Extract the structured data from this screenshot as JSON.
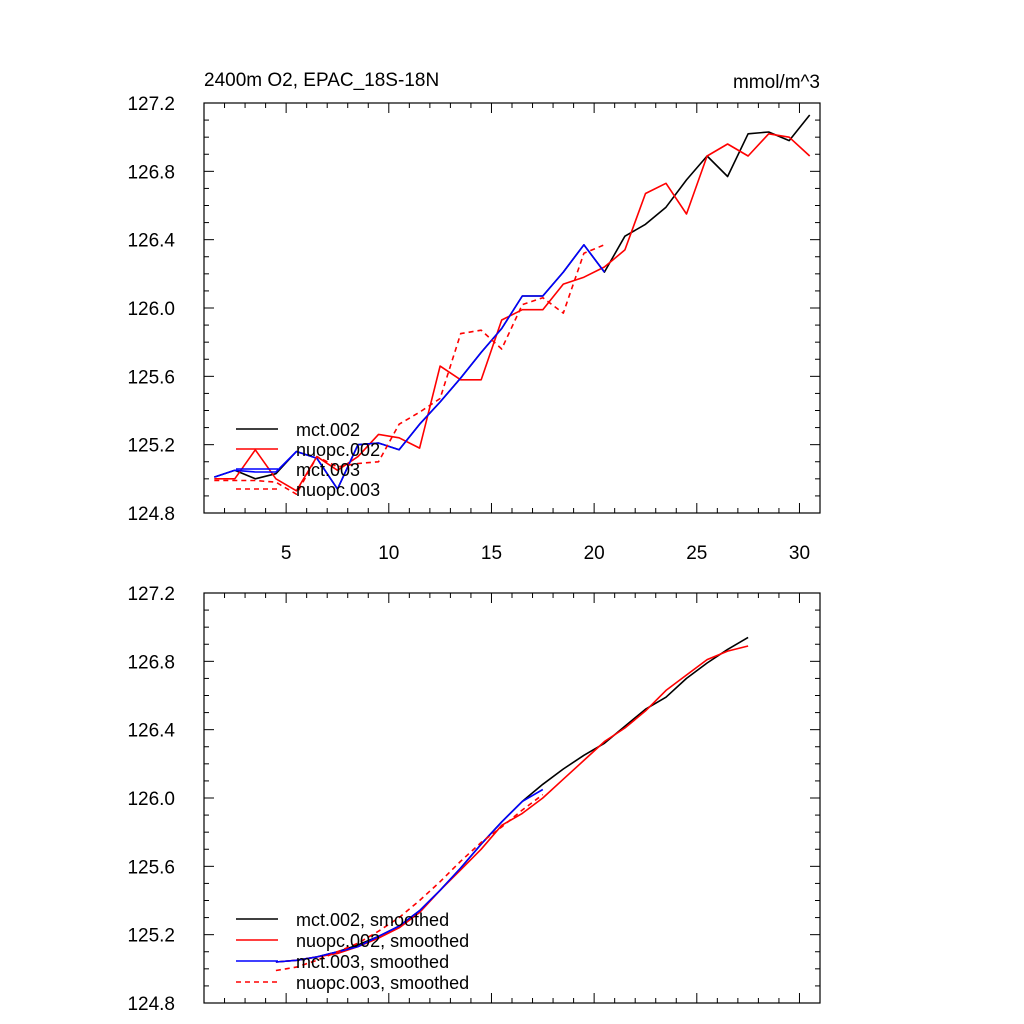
{
  "chart_data": [
    {
      "type": "line",
      "title": "2400m O2, EPAC_18S-18N",
      "units": "mmol/m^3",
      "xlim": [
        1,
        31
      ],
      "ylim": [
        124.8,
        127.2
      ],
      "x_ticks": [
        "5",
        "10",
        "15",
        "20",
        "25",
        "30"
      ],
      "y_ticks": [
        "124.8",
        "125.2",
        "125.6",
        "126.0",
        "126.4",
        "126.8",
        "127.2"
      ],
      "legend": {
        "position": "bottom-left"
      },
      "series": [
        {
          "name": "mct.002",
          "color": "#000000",
          "dash": "solid",
          "x": [
            1.5,
            2.5,
            3.5,
            4.5,
            5.5,
            6.5,
            7.5,
            8.5,
            9.5,
            10.5,
            11.5,
            12.5,
            13.5,
            14.5,
            15.5,
            16.5,
            17.5,
            18.5,
            19.5,
            20.5,
            21.5,
            22.5,
            23.5,
            24.5,
            25.5,
            26.5,
            27.5,
            28.5,
            29.5,
            30.5
          ],
          "y": [
            125.01,
            125.05,
            125.0,
            125.03,
            125.16,
            125.12,
            124.94,
            125.2,
            125.21,
            125.17,
            125.32,
            125.45,
            125.59,
            125.74,
            125.88,
            126.07,
            126.07,
            126.21,
            126.37,
            126.21,
            126.42,
            126.49,
            126.59,
            126.75,
            126.89,
            126.77,
            127.02,
            127.03,
            126.98,
            127.13
          ]
        },
        {
          "name": "nuopc.002",
          "color": "#ff0000",
          "dash": "solid",
          "x": [
            1.5,
            2.5,
            3.5,
            4.5,
            5.5,
            6.5,
            7.5,
            8.5,
            9.5,
            10.5,
            11.5,
            12.5,
            13.5,
            14.5,
            15.5,
            16.5,
            17.5,
            18.5,
            19.5,
            20.5,
            21.5,
            22.5,
            23.5,
            24.5,
            25.5,
            26.5,
            27.5,
            28.5,
            29.5,
            30.5
          ],
          "y": [
            125.0,
            125.0,
            125.17,
            125.0,
            124.93,
            125.13,
            125.05,
            125.13,
            125.26,
            125.24,
            125.18,
            125.66,
            125.58,
            125.58,
            125.93,
            125.99,
            125.99,
            126.14,
            126.18,
            126.24,
            126.34,
            126.67,
            126.73,
            126.55,
            126.89,
            126.96,
            126.89,
            127.02,
            127.0,
            126.89
          ]
        },
        {
          "name": "mct.003",
          "color": "#0000ff",
          "dash": "solid",
          "x": [
            1.5,
            2.5,
            3.5,
            4.5,
            5.5,
            6.5,
            7.5,
            8.5,
            9.5,
            10.5,
            11.5,
            12.5,
            13.5,
            14.5,
            15.5,
            16.5,
            17.5,
            18.5,
            19.5,
            20.5
          ],
          "y": [
            125.01,
            125.05,
            125.04,
            125.04,
            125.16,
            125.12,
            124.94,
            125.2,
            125.21,
            125.17,
            125.32,
            125.45,
            125.59,
            125.74,
            125.88,
            126.07,
            126.07,
            126.21,
            126.37,
            126.21
          ]
        },
        {
          "name": "nuopc.003",
          "color": "#ff0000",
          "dash": "dashed",
          "x": [
            1.5,
            2.5,
            3.5,
            4.5,
            5.5,
            6.5,
            7.5,
            8.5,
            9.5,
            10.5,
            11.5,
            12.5,
            13.5,
            14.5,
            15.5,
            16.5,
            17.5,
            18.5,
            19.5,
            20.5
          ],
          "y": [
            124.99,
            124.99,
            124.99,
            124.98,
            124.91,
            125.13,
            125.07,
            125.09,
            125.1,
            125.32,
            125.39,
            125.47,
            125.85,
            125.87,
            125.76,
            126.02,
            126.06,
            125.97,
            126.32,
            126.37
          ]
        }
      ]
    },
    {
      "type": "line",
      "title": "",
      "xlim": [
        1,
        31
      ],
      "ylim": [
        124.8,
        127.2
      ],
      "x_ticks": [],
      "y_ticks": [
        "124.8",
        "125.2",
        "125.6",
        "126.0",
        "126.4",
        "126.8",
        "127.2"
      ],
      "legend": {
        "position": "bottom-left"
      },
      "series": [
        {
          "name": "mct.002, smoothed",
          "color": "#000000",
          "dash": "solid",
          "x": [
            4.5,
            5.5,
            6.5,
            7.5,
            8.5,
            9.5,
            10.5,
            11.5,
            12.5,
            13.5,
            14.5,
            15.5,
            16.5,
            17.5,
            18.5,
            19.5,
            20.5,
            21.5,
            22.5,
            23.5,
            24.5,
            25.5,
            26.5,
            27.5
          ],
          "y": [
            125.04,
            125.05,
            125.07,
            125.1,
            125.14,
            125.19,
            125.25,
            125.34,
            125.46,
            125.59,
            125.73,
            125.86,
            125.98,
            126.08,
            126.17,
            126.25,
            126.32,
            126.42,
            126.52,
            126.59,
            126.7,
            126.79,
            126.87,
            126.94
          ]
        },
        {
          "name": "nuopc.002, smoothed",
          "color": "#ff0000",
          "dash": "solid",
          "x": [
            4.5,
            5.5,
            6.5,
            7.5,
            8.5,
            9.5,
            10.5,
            11.5,
            12.5,
            13.5,
            14.5,
            15.5,
            16.5,
            17.5,
            18.5,
            19.5,
            20.5,
            21.5,
            22.5,
            23.5,
            24.5,
            25.5,
            26.5,
            27.5
          ],
          "y": [
            125.04,
            125.05,
            125.07,
            125.09,
            125.13,
            125.18,
            125.24,
            125.33,
            125.46,
            125.58,
            125.7,
            125.84,
            125.91,
            126.0,
            126.11,
            126.22,
            126.33,
            126.41,
            126.51,
            126.63,
            126.72,
            126.81,
            126.86,
            126.89
          ]
        },
        {
          "name": "mct.003, smoothed",
          "color": "#0000ff",
          "dash": "solid",
          "x": [
            4.5,
            5.5,
            6.5,
            7.5,
            8.5,
            9.5,
            10.5,
            11.5,
            12.5,
            13.5,
            14.5,
            15.5,
            16.5,
            17.5
          ],
          "y": [
            125.04,
            125.05,
            125.07,
            125.1,
            125.13,
            125.19,
            125.25,
            125.34,
            125.46,
            125.59,
            125.73,
            125.86,
            125.98,
            126.05
          ]
        },
        {
          "name": "nuopc.003, smoothed",
          "color": "#ff0000",
          "dash": "dashed",
          "x": [
            4.5,
            5.5,
            6.5,
            7.5,
            8.5,
            9.5,
            10.5,
            11.5,
            12.5,
            13.5,
            14.5,
            15.5,
            16.5,
            17.5
          ],
          "y": [
            124.99,
            125.01,
            125.05,
            125.1,
            125.15,
            125.22,
            125.3,
            125.4,
            125.51,
            125.63,
            125.74,
            125.83,
            125.93,
            126.02
          ]
        }
      ]
    }
  ]
}
